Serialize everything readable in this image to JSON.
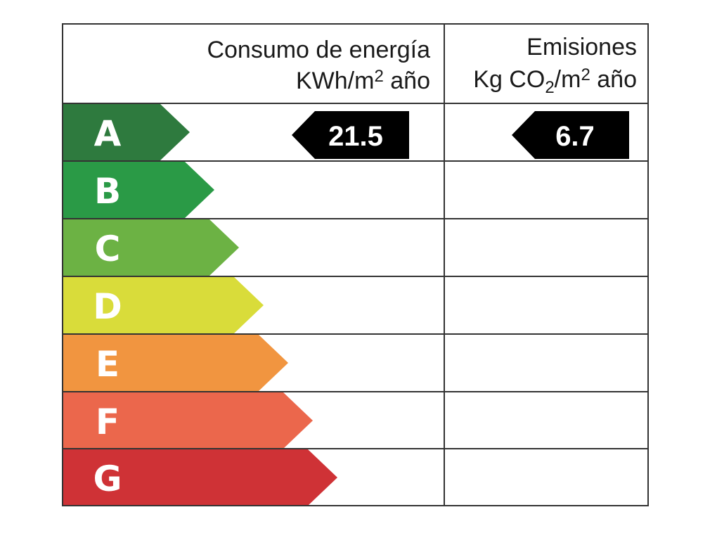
{
  "header": {
    "energy_title": "Consumo de energía",
    "energy_unit_prefix": "KWh/m",
    "energy_unit_exp": "2",
    "energy_unit_suffix": " año",
    "emissions_title": "Emisiones",
    "emissions_unit_prefix": "Kg CO",
    "emissions_unit_sub": "2",
    "emissions_unit_mid": "/m",
    "emissions_unit_exp": "2",
    "emissions_unit_suffix": " año"
  },
  "classes": [
    {
      "letter": "A",
      "color": "#2e7a3e"
    },
    {
      "letter": "B",
      "color": "#2a9a46"
    },
    {
      "letter": "C",
      "color": "#6cb244"
    },
    {
      "letter": "D",
      "color": "#d9dc3a"
    },
    {
      "letter": "E",
      "color": "#f19540"
    },
    {
      "letter": "F",
      "color": "#eb674c"
    },
    {
      "letter": "G",
      "color": "#cf3236"
    }
  ],
  "energy_rating": {
    "class": "A",
    "value": "21.5"
  },
  "emissions_rating": {
    "class": "A",
    "value": "6.7"
  }
}
